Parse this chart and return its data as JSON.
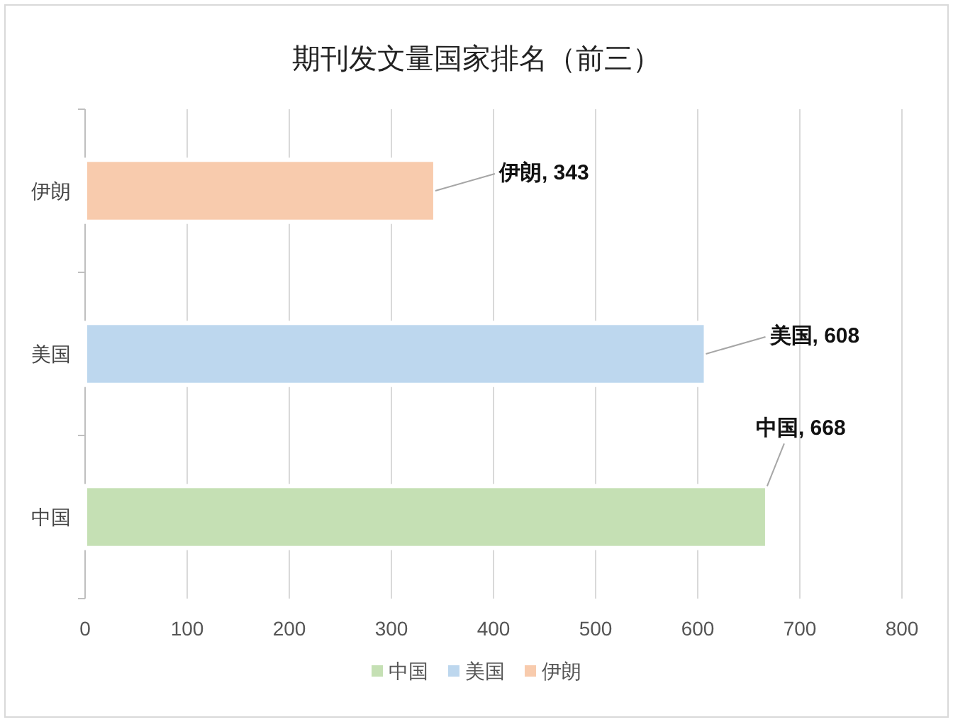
{
  "chart_data": {
    "type": "bar",
    "orientation": "horizontal",
    "title": "期刊发文量国家排名（前三）",
    "categories": [
      "伊朗",
      "美国",
      "中国"
    ],
    "series": [
      {
        "name": "中国",
        "color": "#c5e0b4",
        "values": [
          null,
          null,
          668
        ],
        "value_labels": [
          null,
          null,
          "中国, 668"
        ]
      },
      {
        "name": "美国",
        "color": "#bdd7ee",
        "values": [
          null,
          608,
          null
        ],
        "value_labels": [
          null,
          "美国, 608",
          null
        ]
      },
      {
        "name": "伊朗",
        "color": "#f8cbad",
        "values": [
          343,
          null,
          null
        ],
        "value_labels": [
          "伊朗, 343",
          null,
          null
        ]
      }
    ],
    "xlim": [
      0,
      800
    ],
    "xticks": [
      0,
      100,
      200,
      300,
      400,
      500,
      600,
      700,
      800
    ],
    "grid": "x",
    "legend": "bottom"
  }
}
